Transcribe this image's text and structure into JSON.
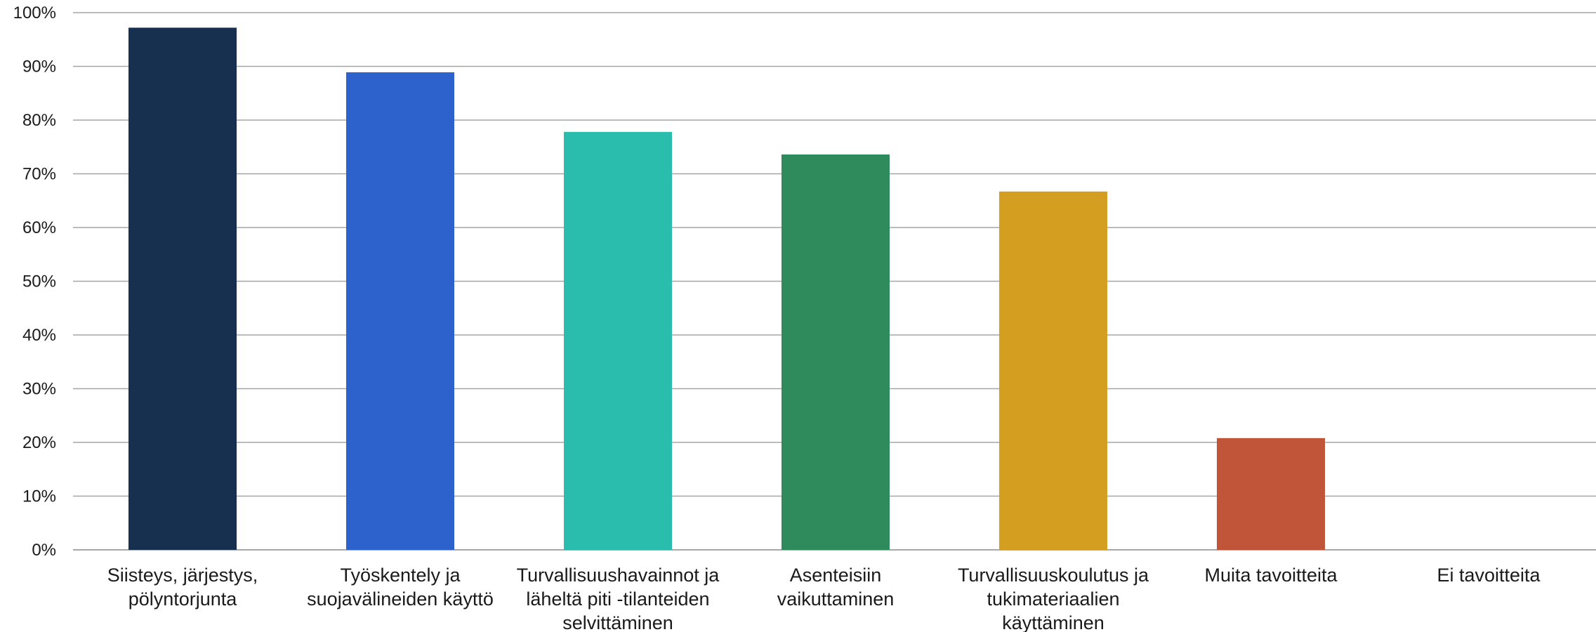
{
  "chart_data": {
    "type": "bar",
    "title": "",
    "xlabel": "",
    "ylabel": "",
    "ylim": [
      0,
      100
    ],
    "yticks": [
      "0%",
      "10%",
      "20%",
      "30%",
      "40%",
      "50%",
      "60%",
      "70%",
      "80%",
      "90%",
      "100%"
    ],
    "grid": true,
    "categories": [
      [
        "Siisteys, järjestys,",
        "pölyntorjunta"
      ],
      [
        "Työskentely ja",
        "suojavälineiden käyttö"
      ],
      [
        "Turvallisuushavainnot ja",
        "läheltä piti -tilanteiden",
        "selvittäminen"
      ],
      [
        "Asenteisiin",
        "vaikuttaminen"
      ],
      [
        "Turvallisuuskoulutus ja",
        "tukimateriaalien",
        "käyttäminen"
      ],
      [
        "Muita tavoitteita"
      ],
      [
        "Ei tavoitteita"
      ]
    ],
    "values": [
      97.2,
      88.9,
      77.8,
      73.6,
      66.7,
      20.8,
      0
    ],
    "colors": [
      "#17304f",
      "#2d62cc",
      "#2abcad",
      "#2f8a5c",
      "#d49e20",
      "#c0553a",
      "#999999"
    ]
  }
}
